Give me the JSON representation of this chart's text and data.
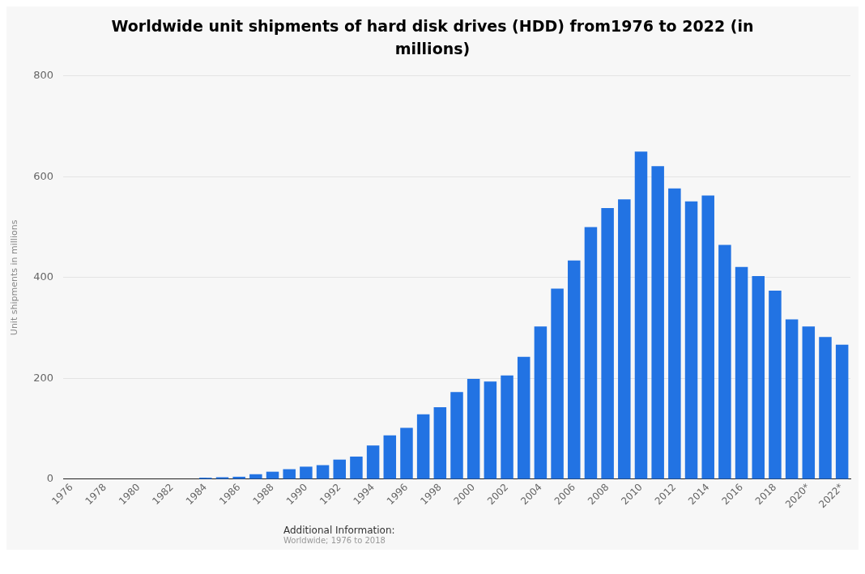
{
  "chart_data": {
    "type": "bar",
    "title": "Worldwide unit shipments of hard disk drives (HDD) from1976 to 2022 (in millions)",
    "ylabel": "Unit shipments in millions",
    "categories": [
      "1976",
      null,
      "1978",
      null,
      "1980",
      null,
      "1982",
      null,
      "1984",
      null,
      "1986",
      null,
      "1988",
      null,
      "1990",
      null,
      "1992",
      null,
      "1994",
      null,
      "1996",
      null,
      "1998",
      null,
      "2000",
      null,
      "2002",
      null,
      "2004",
      null,
      "2006",
      null,
      "2008",
      null,
      "2010",
      null,
      "2012",
      null,
      "2014",
      null,
      "2016",
      null,
      "2018",
      null,
      "2020*",
      null,
      "2022*"
    ],
    "values": [
      0,
      0,
      0,
      0,
      0,
      0,
      0,
      0,
      3,
      4,
      5,
      10,
      15,
      20,
      25,
      28,
      39,
      45,
      67,
      87,
      102,
      129,
      143,
      173,
      199,
      194,
      206,
      243,
      303,
      378,
      434,
      500,
      538,
      555,
      650,
      621,
      577,
      551,
      563,
      465,
      421,
      403,
      374,
      317,
      303,
      282,
      267
    ],
    "color": "#2273e3",
    "ylim": [
      0,
      800
    ],
    "yticks": [
      0,
      200,
      400,
      600,
      800
    ],
    "grid": "y",
    "annotations": [
      "Additional Information:",
      "Worldwide; 1976 to 2018"
    ]
  }
}
